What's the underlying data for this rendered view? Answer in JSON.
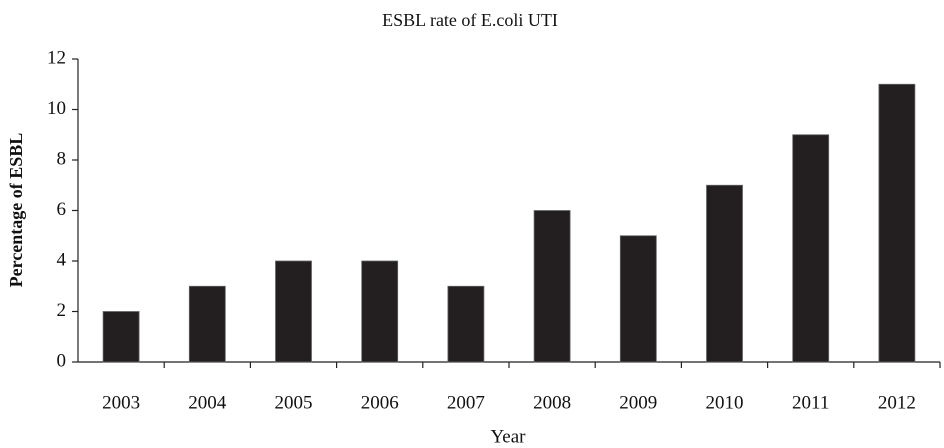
{
  "chart_data": {
    "type": "bar",
    "title": "ESBL rate of E.coli UTI",
    "x_label": "Year",
    "y_label": "Percentage of ESBL",
    "categories": [
      "2003",
      "2004",
      "2005",
      "2006",
      "2007",
      "2008",
      "2009",
      "2010",
      "2011",
      "2012"
    ],
    "values": [
      2,
      3,
      4,
      4,
      3,
      6,
      5,
      7,
      9,
      11
    ],
    "color": "#231f20",
    "ylim": [
      0,
      12
    ],
    "yticks": [
      0,
      2,
      4,
      6,
      8,
      10,
      12
    ],
    "grid": false
  }
}
